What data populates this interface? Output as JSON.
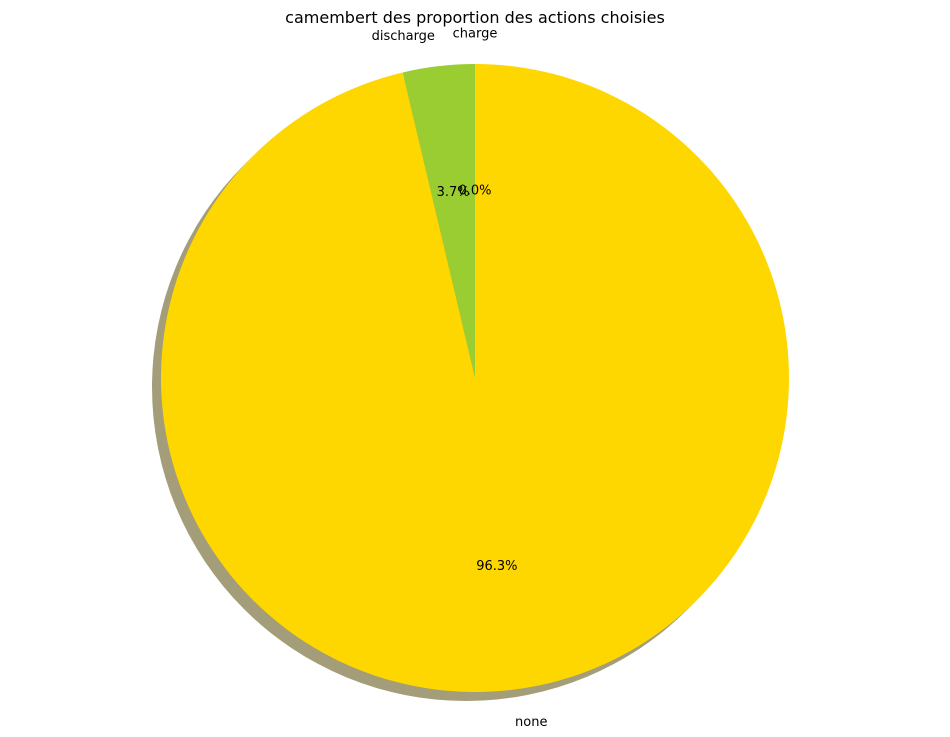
{
  "chart_data": {
    "type": "pie",
    "title": "camembert des proportion des actions choisies",
    "slices": [
      {
        "label": "charge",
        "value": 0.0,
        "pct_label": "0.0%",
        "color": "#ff0000"
      },
      {
        "label": "discharge",
        "value": 3.7,
        "pct_label": "3.7%",
        "color": "#9acd32"
      },
      {
        "label": "none",
        "value": 96.3,
        "pct_label": "96.3%",
        "color": "#ffd700"
      }
    ],
    "start_angle_deg": 90,
    "direction": "counterclockwise",
    "shadow": true,
    "shadow_color": "#a39d7a"
  }
}
